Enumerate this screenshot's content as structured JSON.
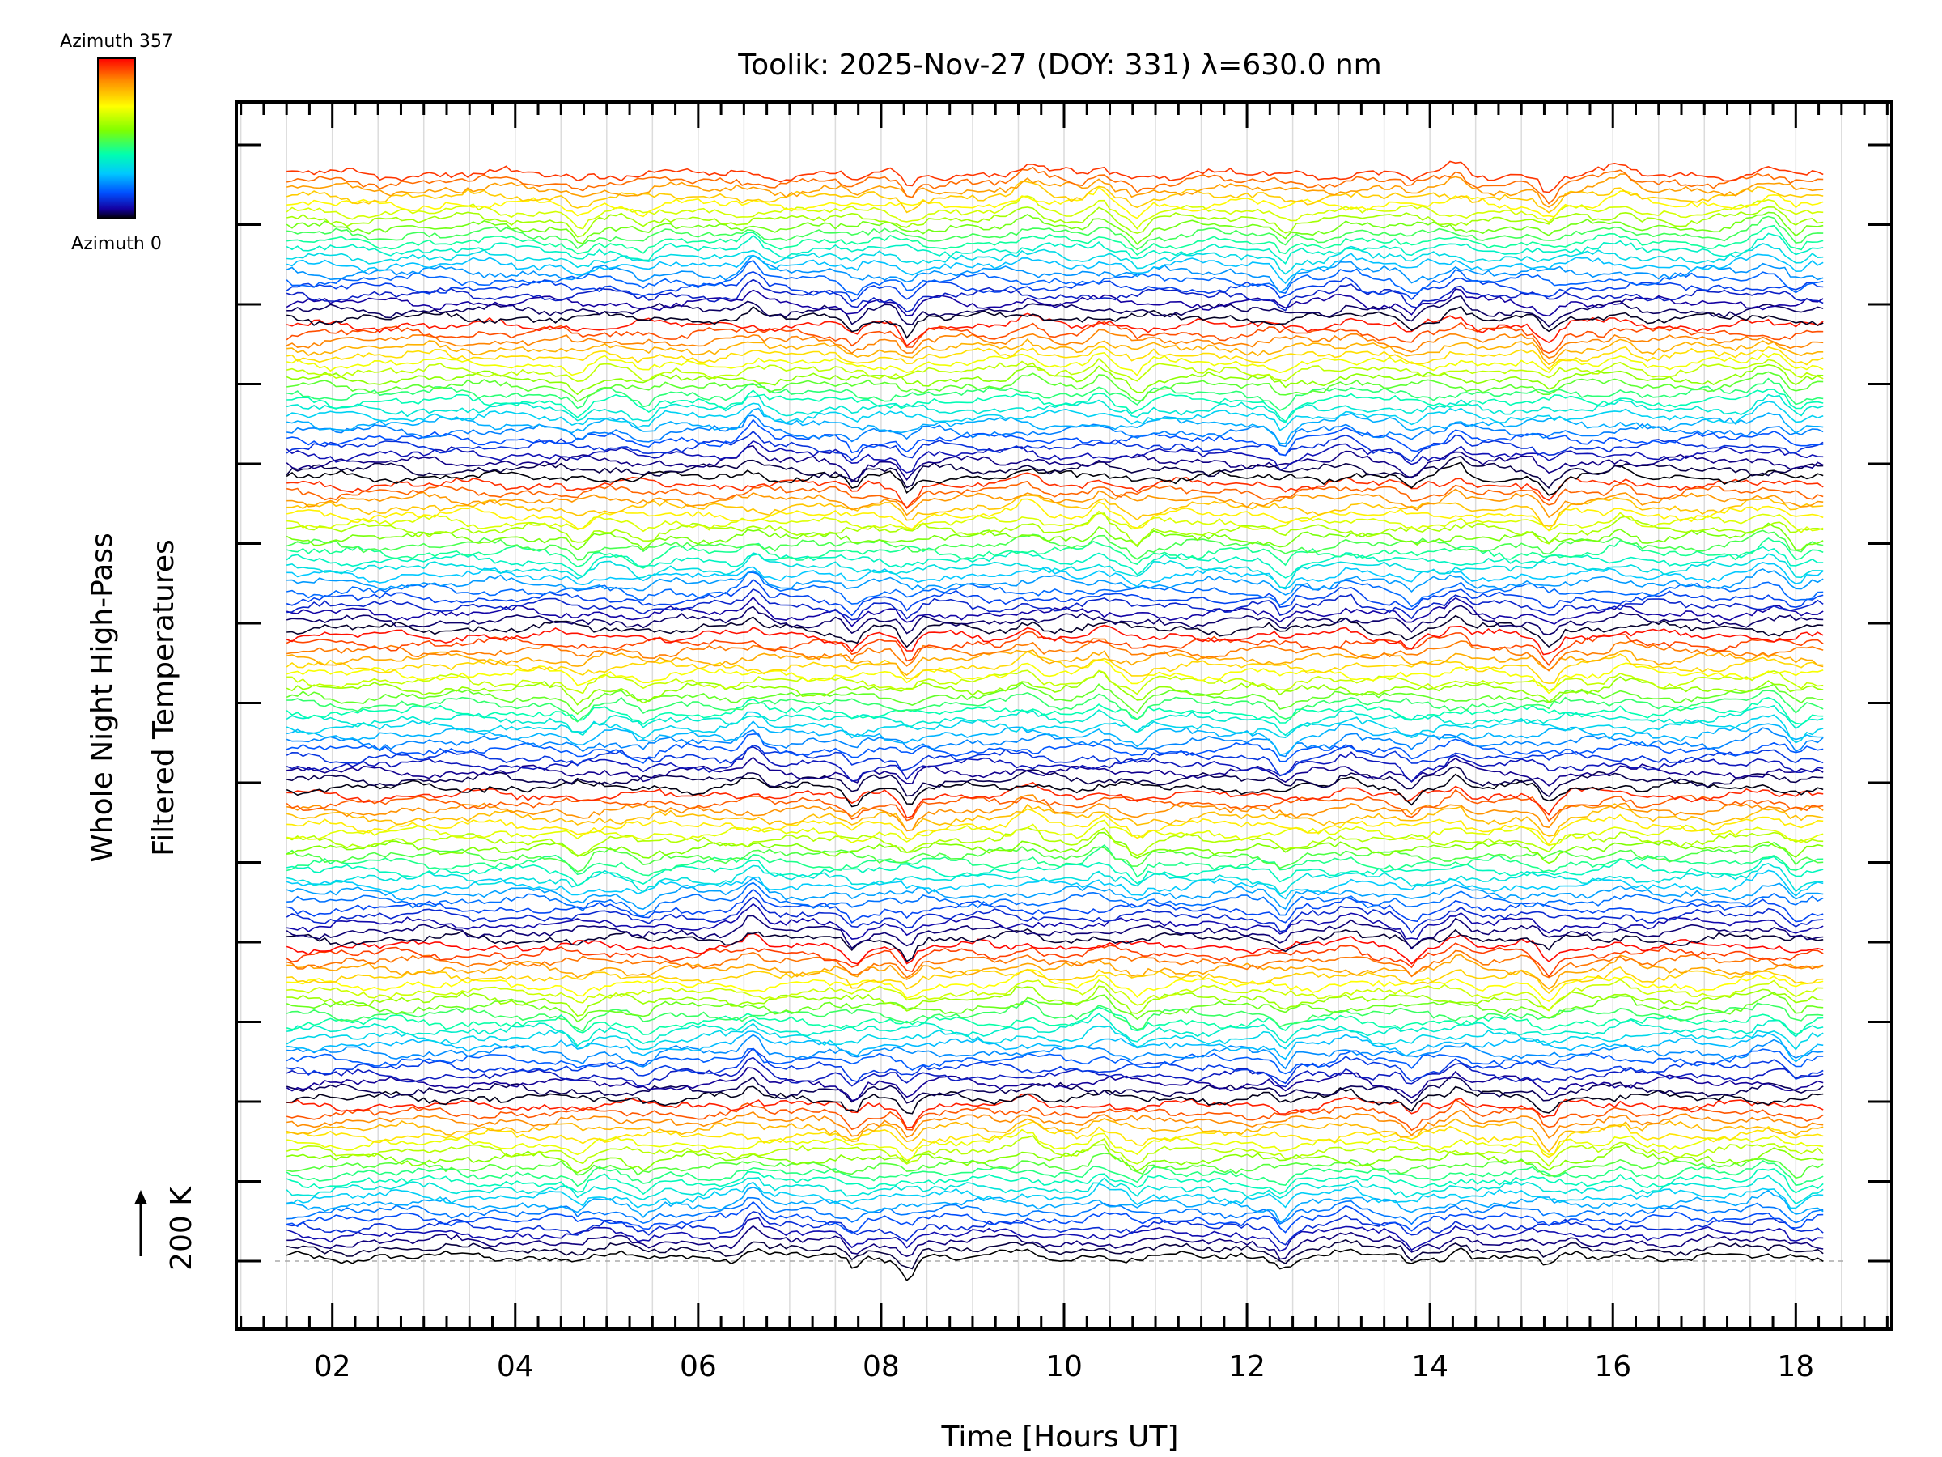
{
  "chart_data": {
    "type": "line",
    "title": "Toolik: 2025-Nov-27 (DOY: 331) λ=630.0 nm",
    "xlabel": "Time [Hours UT]",
    "ylabel_line1": "Whole Night High-Pass",
    "ylabel_line2": "Filtered Temperatures",
    "scale_label": "200 K",
    "xlim": [
      0.95,
      19.05
    ],
    "x_start": 1.5,
    "x_end": 18.3,
    "x_ticks": [
      "02",
      "04",
      "06",
      "08",
      "10",
      "12",
      "14",
      "16",
      "18"
    ],
    "x_tick_values": [
      2,
      4,
      6,
      8,
      10,
      12,
      14,
      16,
      18
    ],
    "n_series": 144,
    "series_offset_K": 20,
    "colorbar": {
      "top_label": "Azimuth 357",
      "bottom_label": "Azimuth 0",
      "colors": [
        "#ff0000",
        "#ff8c00",
        "#ffff00",
        "#7fff00",
        "#00ffb0",
        "#00c8ff",
        "#0050ff",
        "#1400a0",
        "#000000"
      ]
    },
    "series_note": "Stacked high-pass filtered temperature traces, one per zenith/azimuth look direction, each offset vertically; color encodes azimuth (0-357)."
  }
}
